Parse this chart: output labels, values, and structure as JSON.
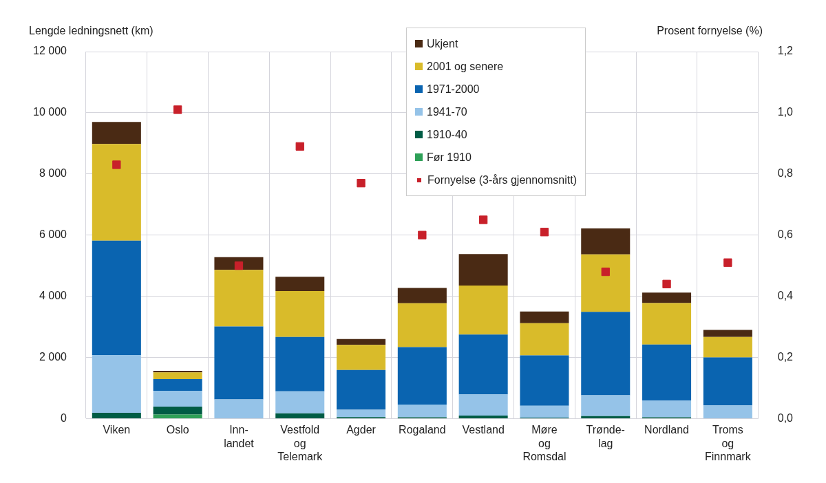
{
  "chart_data": {
    "type": "bar",
    "stacked": true,
    "ylabel": "Lengde ledningsnett (km)",
    "y2label": "Prosent fornyelse (%)",
    "categories": [
      "Viken",
      "Oslo",
      "Inn-\nlandet",
      "Vestfold\nog\nTelemark",
      "Agder",
      "Rogaland",
      "Vestland",
      "Møre\nog\nRomsdal",
      "Trønde-\nlag",
      "Nordland",
      "Troms\nog\nFinnmark"
    ],
    "series": [
      {
        "name": "Før 1910",
        "color": "#2ea057",
        "values": [
          0,
          130,
          0,
          0,
          0,
          0,
          0,
          0,
          0,
          0,
          0
        ]
      },
      {
        "name": "1910-40",
        "color": "#005c45",
        "values": [
          190,
          260,
          null,
          170,
          50,
          40,
          100,
          30,
          80,
          40,
          null
        ]
      },
      {
        "name": "1941-70",
        "color": "#95c3e8",
        "values": [
          1890,
          520,
          630,
          720,
          240,
          420,
          690,
          390,
          680,
          550,
          430
        ]
      },
      {
        "name": "1971-2000",
        "color": "#0a64b0",
        "values": [
          3740,
          380,
          2380,
          1780,
          1300,
          1880,
          1960,
          1650,
          2730,
          1830,
          1570
        ]
      },
      {
        "name": "2001 og senere",
        "color": "#d9bb2a",
        "values": [
          3160,
          220,
          1850,
          1500,
          820,
          1430,
          1600,
          1050,
          1880,
          1360,
          670
        ]
      },
      {
        "name": "Ukjent",
        "color": "#4a2a14",
        "values": [
          720,
          50,
          420,
          470,
          190,
          500,
          1030,
          380,
          850,
          340,
          230
        ]
      },
      {
        "name": "Fornyelse  (3-års gjennomsnitt)",
        "type": "scatter",
        "axis": "y2",
        "marker": "square",
        "color": "#c8202a",
        "x": [
          "Viken",
          "Oslo",
          "Inn-\nlandet",
          "Vestfold\nog\nTelemark",
          "Agder",
          "Rogaland",
          "Vestland",
          "Møre\nog\nRomsdal",
          "Trønde-\nlag",
          "Nordland",
          "Troms\nog\nFinnmark"
        ],
        "values": [
          0.83,
          1.01,
          0.5,
          0.89,
          0.77,
          0.6,
          0.65,
          0.61,
          0.48,
          0.44,
          0.51
        ]
      }
    ],
    "ylim": [
      0,
      12000
    ],
    "yticks": [
      0,
      {
        "value": 2000,
        "label": "2 000"
      },
      {
        "value": 4000,
        "label": "4 000"
      },
      {
        "value": 6000,
        "label": "6 000"
      },
      {
        "value": 8000,
        "label": "8 000"
      },
      {
        "value": 10000,
        "label": "10 000"
      },
      {
        "value": 12000,
        "label": "12 000"
      }
    ],
    "y2lim": [
      0,
      1.2
    ],
    "y2ticks": [
      {
        "value": 0,
        "label": "0,0"
      },
      {
        "value": 0.2,
        "label": "0,2"
      },
      {
        "value": 0.4,
        "label": "0,4"
      },
      {
        "value": 0.6,
        "label": "0,6"
      },
      {
        "value": 0.8,
        "label": "0,8"
      },
      {
        "value": 1,
        "label": "1,0"
      },
      {
        "value": 1.2,
        "label": "1,2"
      }
    ],
    "grid": true,
    "legend": "top"
  }
}
